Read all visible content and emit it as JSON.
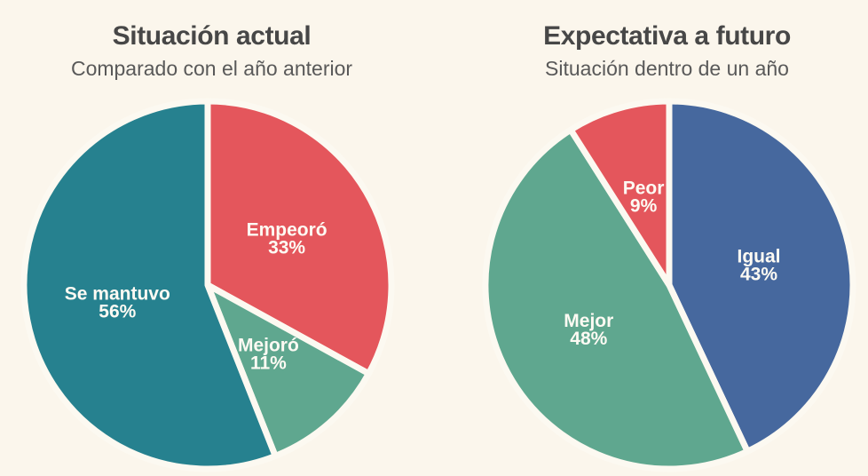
{
  "theme": {
    "background": "#fbf6ec",
    "slice_separator": "#fcf9f1",
    "title_color": "#474747",
    "subtitle_color": "#595959",
    "slice_label_color": "#fdfaf3"
  },
  "chart_data": [
    {
      "type": "pie",
      "title": "Situación actual",
      "subtitle": "Comparado con el año anterior",
      "start_angle_deg": 0,
      "direction": "clockwise",
      "legend": "none",
      "labels_position": "inside",
      "label_format": "{label} {value}%",
      "slices": [
        {
          "label": "Empeoró",
          "value": 33,
          "unit": "%",
          "color": "#e4565c"
        },
        {
          "label": "Mejoró",
          "value": 11,
          "unit": "%",
          "color": "#5fa78f"
        },
        {
          "label": "Se mantuvo",
          "value": 56,
          "unit": "%",
          "color": "#26818f"
        }
      ]
    },
    {
      "type": "pie",
      "title": "Expectativa a futuro",
      "subtitle": "Situación dentro de un año",
      "start_angle_deg": 0,
      "direction": "clockwise",
      "legend": "none",
      "labels_position": "inside",
      "label_format": "{label} {value}%",
      "slices": [
        {
          "label": "Igual",
          "value": 43,
          "unit": "%",
          "color": "#46689e"
        },
        {
          "label": "Mejor",
          "value": 48,
          "unit": "%",
          "color": "#5fa78f"
        },
        {
          "label": "Peor",
          "value": 9,
          "unit": "%",
          "color": "#e4565c"
        }
      ]
    }
  ]
}
